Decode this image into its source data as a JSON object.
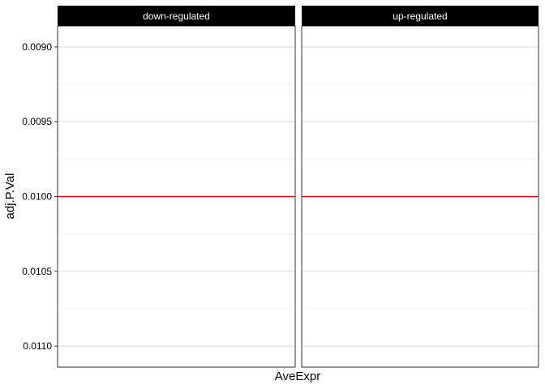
{
  "chart_data": {
    "type": "scatter",
    "xlabel": "AveExpr",
    "ylabel": "adj.P.Val",
    "y_axis_reversed": true,
    "ylim": [
      0.01114,
      0.00886
    ],
    "y_ticks": [
      0.009,
      0.0095,
      0.01,
      0.0105,
      0.011
    ],
    "y_tick_labels": [
      "0.0090",
      "0.0095",
      "0.0100",
      "0.0105",
      "0.0110"
    ],
    "x_ticks": [],
    "grid": true,
    "facets": [
      {
        "label": "down-regulated",
        "points": []
      },
      {
        "label": "up-regulated",
        "points": []
      }
    ],
    "reference_line": {
      "y": 0.01,
      "color": "#ff0000"
    },
    "colors": {
      "strip_bg": "#000000",
      "strip_text": "#ffffff",
      "grid_major": "#d9d9d9",
      "grid_minor": "#ebebeb",
      "panel_border": "#333333"
    }
  }
}
